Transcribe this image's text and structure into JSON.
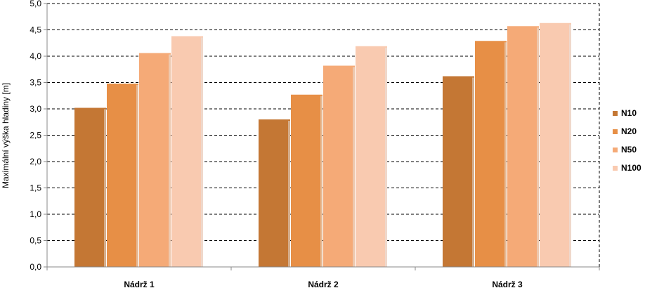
{
  "chart_data": {
    "type": "bar",
    "title": "",
    "xlabel": "",
    "ylabel": "Maximální výška hladiny [m]",
    "categories": [
      "Nádrž 1",
      "Nádrž 2",
      "Nádrž 3"
    ],
    "series": [
      {
        "name": "N10",
        "color": "#c47734",
        "values": [
          3.02,
          2.8,
          3.62
        ]
      },
      {
        "name": "N20",
        "color": "#e78f46",
        "values": [
          3.48,
          3.27,
          4.29
        ]
      },
      {
        "name": "N50",
        "color": "#f5aa77",
        "values": [
          4.06,
          3.82,
          4.57
        ]
      },
      {
        "name": "N100",
        "color": "#f9cab0",
        "values": [
          4.38,
          4.19,
          4.63
        ]
      }
    ],
    "ylim": [
      0,
      5
    ],
    "yticks": [
      "0,0",
      "0,5",
      "1,0",
      "1,5",
      "2,0",
      "2,5",
      "3,0",
      "3,5",
      "4,0",
      "4,5",
      "5,0"
    ],
    "grid": true,
    "legend": "right"
  }
}
